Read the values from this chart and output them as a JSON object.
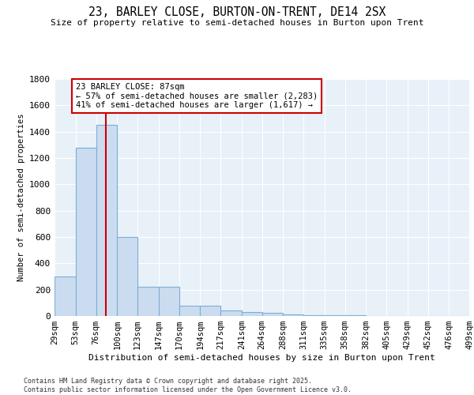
{
  "title": "23, BARLEY CLOSE, BURTON-ON-TRENT, DE14 2SX",
  "subtitle": "Size of property relative to semi-detached houses in Burton upon Trent",
  "xlabel": "Distribution of semi-detached houses by size in Burton upon Trent",
  "ylabel": "Number of semi-detached properties",
  "bin_edges": [
    29,
    53,
    76,
    100,
    123,
    147,
    170,
    194,
    217,
    241,
    264,
    288,
    311,
    335,
    358,
    382,
    405,
    429,
    452,
    476,
    499
  ],
  "bar_heights": [
    300,
    1280,
    1450,
    600,
    225,
    225,
    80,
    80,
    40,
    30,
    25,
    15,
    8,
    5,
    4,
    3,
    2,
    2,
    1,
    1
  ],
  "bar_color": "#ccdcf0",
  "bar_edge_color": "#7aafd4",
  "bar_edge_width": 0.8,
  "red_line_x": 87,
  "red_line_color": "#cc0000",
  "annotation_text": "23 BARLEY CLOSE: 87sqm\n← 57% of semi-detached houses are smaller (2,283)\n41% of semi-detached houses are larger (1,617) →",
  "ylim": [
    0,
    1800
  ],
  "yticks": [
    0,
    200,
    400,
    600,
    800,
    1000,
    1200,
    1400,
    1600,
    1800
  ],
  "background_color": "#e8f0f8",
  "grid_color": "#ffffff",
  "footer_line1": "Contains HM Land Registry data © Crown copyright and database right 2025.",
  "footer_line2": "Contains public sector information licensed under the Open Government Licence v3.0."
}
